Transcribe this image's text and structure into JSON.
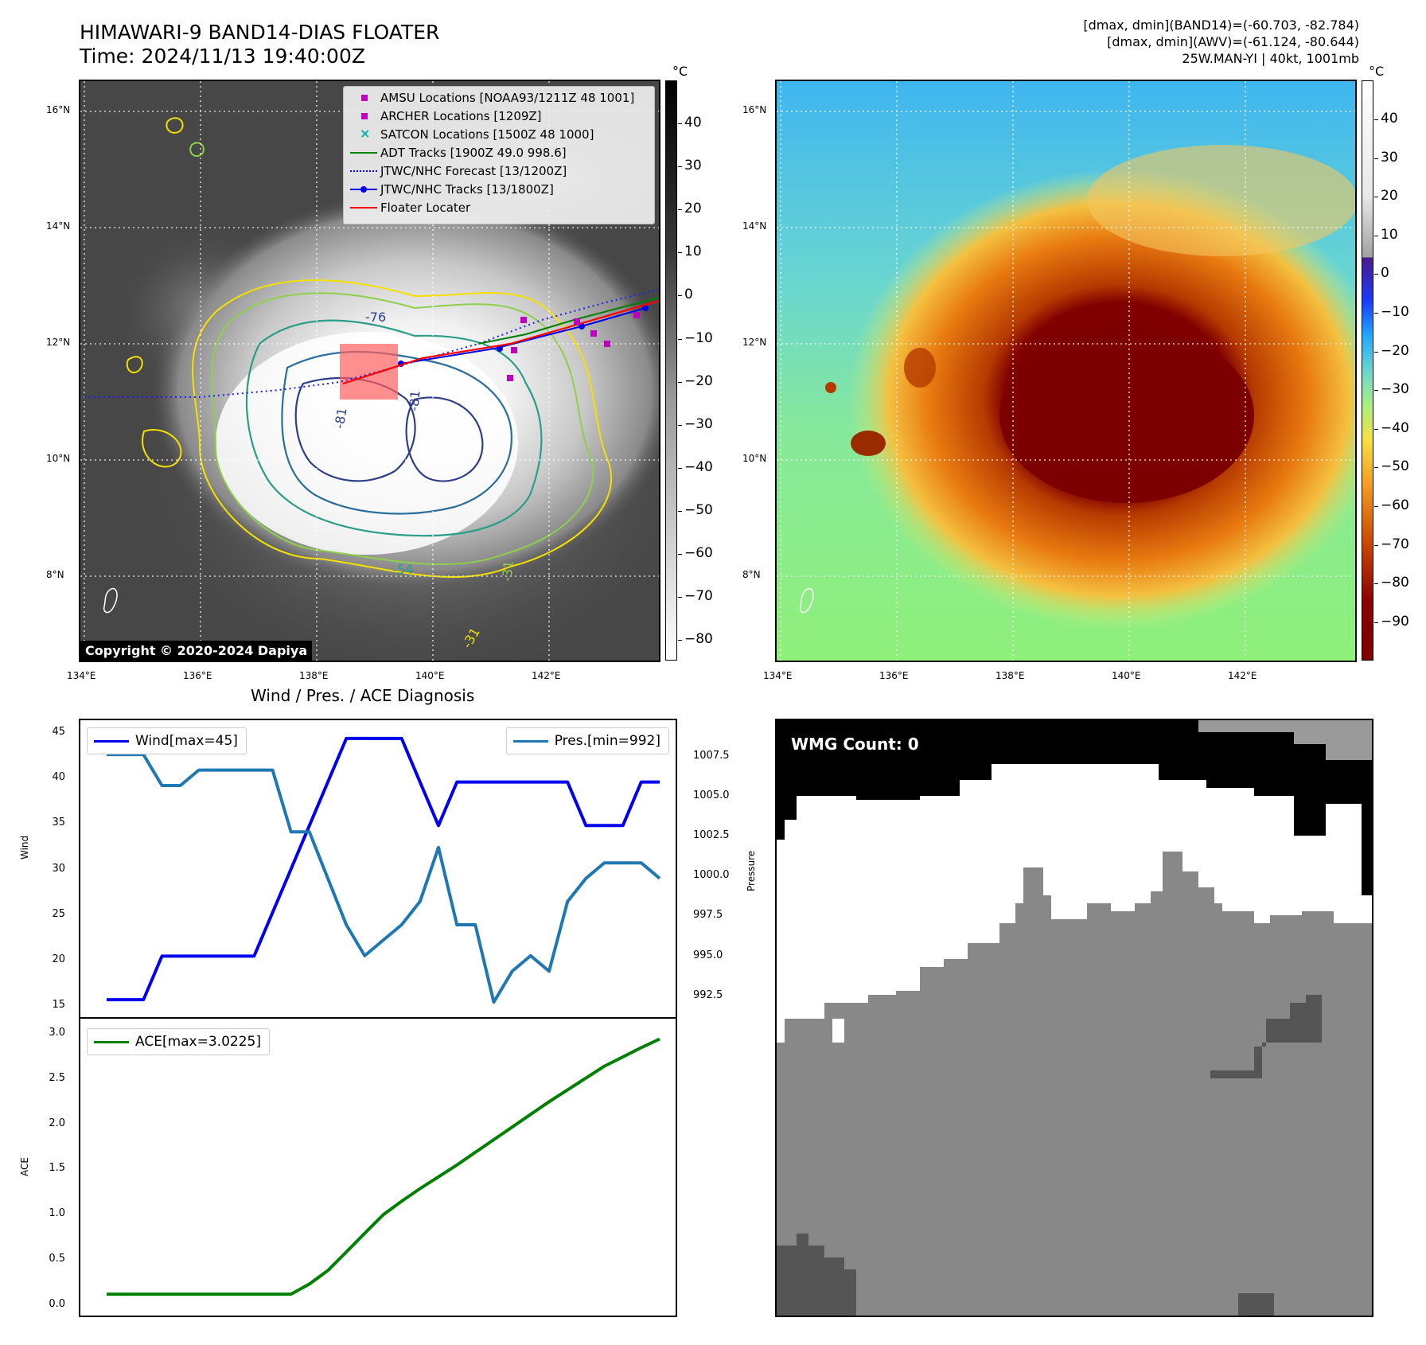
{
  "header": {
    "title_line1": "HIMAWARI-9 BAND14-DIAS FLOATER",
    "title_line2": "Time: 2024/11/13 19:40:00Z",
    "info_line1": "[dmax, dmin](BAND14)=(-60.703, -82.784)",
    "info_line2": "[dmax, dmin](AWV)=(-61.124, -80.644)",
    "info_line3": "25W.MAN-YI | 40kt, 1001mb"
  },
  "map": {
    "lat_ticks": [
      "16°N",
      "14°N",
      "12°N",
      "10°N",
      "8°N"
    ],
    "lon_ticks": [
      "134°E",
      "136°E",
      "138°E",
      "140°E",
      "142°E"
    ],
    "copyright": "Copyright © 2020-2024 Dapiya",
    "contour_labels": [
      "-76",
      "-81",
      "-81",
      "-31",
      "-54",
      "-31"
    ],
    "legend": [
      {
        "label": "AMSU Locations [NOAA93/1211Z 48 1001]",
        "color": "#c000c0",
        "symbol": "square"
      },
      {
        "label": "ARCHER Locations [1209Z]",
        "color": "#c000c0",
        "symbol": "square"
      },
      {
        "label": "SATCON Locations [1500Z 48 1000]",
        "color": "#00b0b0",
        "symbol": "x"
      },
      {
        "label": "ADT Tracks [1900Z 49.0 998.6]",
        "color": "#008000",
        "symbol": "line"
      },
      {
        "label": "JTWC/NHC Forecast [13/1200Z]",
        "color": "#0000ff",
        "symbol": "dotted"
      },
      {
        "label": "JTWC/NHC Tracks [13/1800Z]",
        "color": "#0000ff",
        "symbol": "line-dot"
      },
      {
        "label": "Floater Locater",
        "color": "#ff0000",
        "symbol": "line"
      }
    ]
  },
  "colorbar_left": {
    "unit": "°C",
    "ticks": [
      "40",
      "30",
      "20",
      "10",
      "0",
      "−10",
      "−20",
      "−30",
      "−40",
      "−50",
      "−60",
      "−70",
      "−80"
    ]
  },
  "colorbar_right": {
    "unit": "°C",
    "ticks": [
      "40",
      "30",
      "20",
      "10",
      "0",
      "−10",
      "−20",
      "−30",
      "−40",
      "−50",
      "−60",
      "−70",
      "−80",
      "−90"
    ]
  },
  "diagnosis": {
    "title": "Wind / Pres. / ACE Diagnosis",
    "wind_axis_label": "Wind",
    "pres_axis_label": "Pressure",
    "ace_axis_label": "ACE",
    "wind_legend": "Wind[max=45]",
    "pres_legend": "Pres.[min=992]",
    "ace_legend": "ACE[max=3.0225]",
    "wind_ticks": [
      "45",
      "40",
      "35",
      "30",
      "25",
      "20",
      "15"
    ],
    "pres_ticks": [
      "1007.5",
      "1005.0",
      "1002.5",
      "1000.0",
      "997.5",
      "995.0",
      "992.5"
    ],
    "ace_ticks": [
      "3.0",
      "2.5",
      "2.0",
      "1.5",
      "1.0",
      "0.5",
      "0.0"
    ],
    "colors": {
      "wind": "#0000ee",
      "pres": "#1f77b4",
      "ace": "#008000"
    }
  },
  "wmg": {
    "label": "WMG Count: 0"
  },
  "chart_data": [
    {
      "type": "line",
      "title": "Wind / Pres. / ACE Diagnosis",
      "x": [
        0,
        1,
        2,
        3,
        4,
        5,
        6,
        7,
        8,
        9,
        10,
        11,
        12,
        13,
        14,
        15,
        16,
        17,
        18,
        19,
        20,
        21,
        22,
        23,
        24,
        25,
        26,
        27,
        28,
        29,
        30
      ],
      "series": [
        {
          "name": "Wind[max=45]",
          "axis": "left",
          "values": [
            15,
            15,
            15,
            20,
            20,
            20,
            20,
            20,
            20,
            25,
            30,
            35,
            40,
            45,
            45,
            45,
            45,
            40,
            35,
            40,
            40,
            40,
            40,
            40,
            40,
            40,
            35,
            35,
            35,
            40,
            40
          ]
        },
        {
          "name": "Pres.[min=992]",
          "axis": "right",
          "values": [
            1008,
            1008,
            1008,
            1006,
            1006,
            1007,
            1007,
            1007,
            1007,
            1007,
            1003,
            1003,
            1000,
            997,
            995,
            996,
            997,
            998.5,
            1002,
            997,
            997,
            992,
            994,
            995,
            994,
            998.5,
            1000,
            1001,
            1001,
            1001,
            1000
          ]
        }
      ],
      "ylabel": "Wind",
      "y2label": "Pressure",
      "ylim": [
        14,
        46
      ],
      "y2lim": [
        991.6,
        1009.6
      ]
    },
    {
      "type": "line",
      "x": [
        0,
        1,
        2,
        3,
        4,
        5,
        6,
        7,
        8,
        9,
        10,
        11,
        12,
        13,
        14,
        15,
        16,
        17,
        18,
        19,
        20,
        21,
        22,
        23,
        24,
        25,
        26,
        27,
        28,
        29,
        30
      ],
      "series": [
        {
          "name": "ACE[max=3.0225]",
          "values": [
            0,
            0,
            0,
            0,
            0,
            0,
            0,
            0,
            0,
            0,
            0,
            0.12,
            0.28,
            0.5,
            0.72,
            0.94,
            1.1,
            1.25,
            1.39,
            1.53,
            1.68,
            1.83,
            1.98,
            2.13,
            2.28,
            2.42,
            2.56,
            2.7,
            2.81,
            2.92,
            3.0225
          ]
        }
      ],
      "ylabel": "ACE",
      "ylim": [
        -0.15,
        3.15
      ]
    }
  ]
}
